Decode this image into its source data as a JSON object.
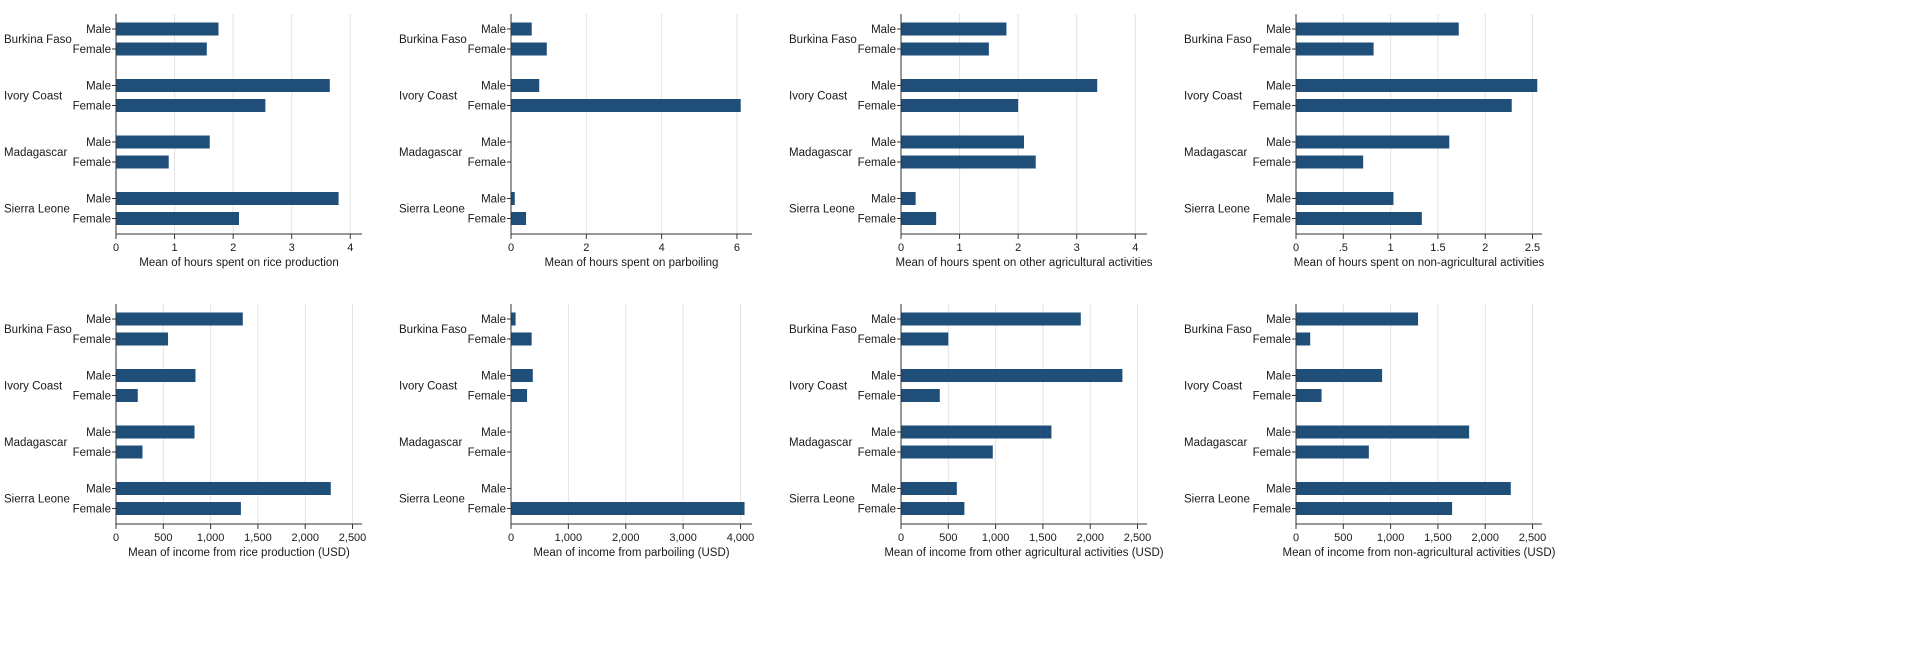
{
  "colors": {
    "bar": "#1f4e79",
    "grid": "#e3e3e3",
    "axis": "#333333",
    "text": "#1a1a1a",
    "background": "#ffffff"
  },
  "countries": [
    "Burkina Faso",
    "Ivory Coast",
    "Madagascar",
    "Sierra Leone"
  ],
  "genders": [
    "Male",
    "Female"
  ],
  "chart_data": [
    {
      "type": "bar",
      "orientation": "horizontal",
      "xlabel": "Mean of hours spent on rice production",
      "xlim": [
        0,
        4.2
      ],
      "ticks": [
        0,
        1,
        2,
        3,
        4
      ],
      "tick_labels": [
        "0",
        "1",
        "2",
        "3",
        "4"
      ],
      "series": [
        {
          "name": "Male",
          "values": [
            1.75,
            3.65,
            1.6,
            3.8
          ]
        },
        {
          "name": "Female",
          "values": [
            1.55,
            2.55,
            0.9,
            2.1
          ]
        }
      ]
    },
    {
      "type": "bar",
      "orientation": "horizontal",
      "xlabel": "Mean of hours spent on parboiling",
      "xlim": [
        0,
        6.4
      ],
      "ticks": [
        0,
        2,
        4,
        6
      ],
      "tick_labels": [
        "0",
        "2",
        "4",
        "6"
      ],
      "series": [
        {
          "name": "Male",
          "values": [
            0.55,
            0.75,
            0,
            0.1
          ]
        },
        {
          "name": "Female",
          "values": [
            0.95,
            6.1,
            0,
            0.4
          ]
        }
      ]
    },
    {
      "type": "bar",
      "orientation": "horizontal",
      "xlabel": "Mean of hours spent on other agricultural activities",
      "xlim": [
        0,
        4.2
      ],
      "ticks": [
        0,
        1,
        2,
        3,
        4
      ],
      "tick_labels": [
        "0",
        "1",
        "2",
        "3",
        "4"
      ],
      "series": [
        {
          "name": "Male",
          "values": [
            1.8,
            3.35,
            2.1,
            0.25
          ]
        },
        {
          "name": "Female",
          "values": [
            1.5,
            2.0,
            2.3,
            0.6
          ]
        }
      ]
    },
    {
      "type": "bar",
      "orientation": "horizontal",
      "xlabel": "Mean of hours spent on non-agricultural activities",
      "xlim": [
        0,
        2.6
      ],
      "ticks": [
        0,
        0.5,
        1,
        1.5,
        2,
        2.5
      ],
      "tick_labels": [
        "0",
        ".5",
        "1",
        "1.5",
        "2",
        "2.5"
      ],
      "series": [
        {
          "name": "Male",
          "values": [
            1.72,
            2.55,
            1.62,
            1.03
          ]
        },
        {
          "name": "Female",
          "values": [
            0.82,
            2.28,
            0.71,
            1.33
          ]
        }
      ]
    },
    {
      "type": "bar",
      "orientation": "horizontal",
      "xlabel": "Mean of income from rice production (USD)",
      "xlim": [
        0,
        2600
      ],
      "ticks": [
        0,
        500,
        1000,
        1500,
        2000,
        2500
      ],
      "tick_labels": [
        "0",
        "500",
        "1,000",
        "1,500",
        "2,000",
        "2,500"
      ],
      "series": [
        {
          "name": "Male",
          "values": [
            1340,
            840,
            830,
            2270
          ]
        },
        {
          "name": "Female",
          "values": [
            550,
            230,
            280,
            1320
          ]
        }
      ]
    },
    {
      "type": "bar",
      "orientation": "horizontal",
      "xlabel": "Mean of income from parboiling (USD)",
      "xlim": [
        0,
        4200
      ],
      "ticks": [
        0,
        1000,
        2000,
        3000,
        4000
      ],
      "tick_labels": [
        "0",
        "1,000",
        "2,000",
        "3,000",
        "4,000"
      ],
      "series": [
        {
          "name": "Male",
          "values": [
            80,
            380,
            0,
            0
          ]
        },
        {
          "name": "Female",
          "values": [
            360,
            280,
            0,
            4070
          ]
        }
      ]
    },
    {
      "type": "bar",
      "orientation": "horizontal",
      "xlabel": "Mean of income from other agricultural activities (USD)",
      "xlim": [
        0,
        2600
      ],
      "ticks": [
        0,
        500,
        1000,
        1500,
        2000,
        2500
      ],
      "tick_labels": [
        "0",
        "500",
        "1,000",
        "1,500",
        "2,000",
        "2,500"
      ],
      "series": [
        {
          "name": "Male",
          "values": [
            1900,
            2340,
            1590,
            590
          ]
        },
        {
          "name": "Female",
          "values": [
            500,
            410,
            970,
            670
          ]
        }
      ]
    },
    {
      "type": "bar",
      "orientation": "horizontal",
      "xlabel": "Mean of income from non-agricultural activities (USD)",
      "xlim": [
        0,
        2600
      ],
      "ticks": [
        0,
        500,
        1000,
        1500,
        2000,
        2500
      ],
      "tick_labels": [
        "0",
        "500",
        "1,000",
        "1,500",
        "2,000",
        "2,500"
      ],
      "series": [
        {
          "name": "Male",
          "values": [
            1290,
            910,
            1830,
            2270
          ]
        },
        {
          "name": "Female",
          "values": [
            150,
            270,
            770,
            1650
          ]
        }
      ]
    }
  ]
}
